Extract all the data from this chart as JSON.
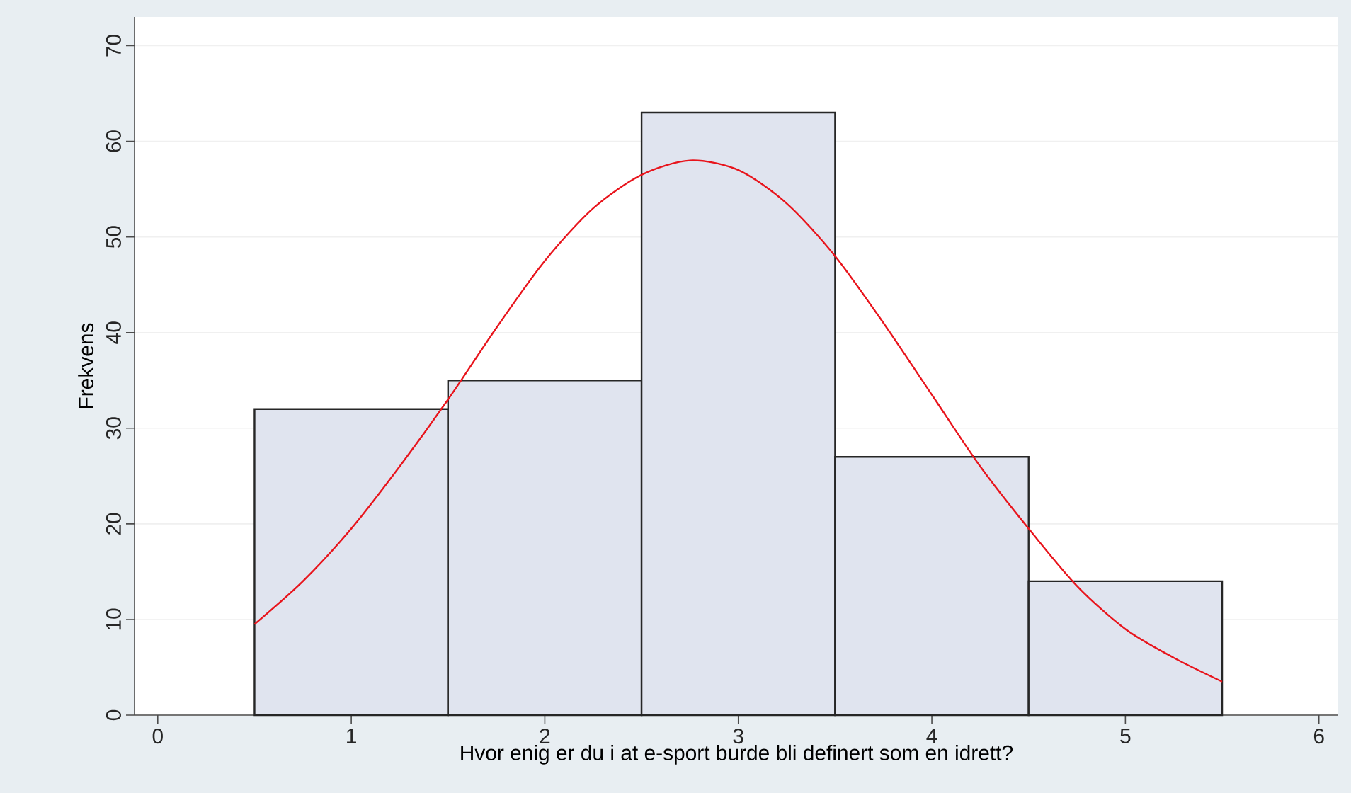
{
  "chart_data": {
    "type": "histogram",
    "xlabel": "Hvor enig er du i at e-sport burde bli definert som en idrett?",
    "ylabel": "Frekvens",
    "bins": [
      0.5,
      1.5,
      2.5,
      3.5,
      4.5,
      5.5
    ],
    "values": [
      32,
      35,
      63,
      27,
      14
    ],
    "color": "#e0e4ef",
    "series": [
      {
        "type": "line",
        "color": "#e8141c",
        "x": [
          0.5,
          0.75,
          1.0,
          1.25,
          1.5,
          1.75,
          2.0,
          2.25,
          2.5,
          2.75,
          3.0,
          3.25,
          3.5,
          3.75,
          4.0,
          4.25,
          4.5,
          4.75,
          5.0,
          5.25,
          5.5
        ],
        "values": [
          9.5,
          14,
          19.5,
          26,
          33,
          40.5,
          47.5,
          53,
          56.5,
          58,
          57,
          53.5,
          48,
          41,
          33.5,
          26,
          19.5,
          13.5,
          9,
          6,
          3.5
        ]
      }
    ],
    "xlim": [
      -0.12,
      6.1
    ],
    "ylim": [
      0,
      73
    ],
    "xticks": [
      0,
      1,
      2,
      3,
      4,
      5,
      6
    ],
    "yticks": [
      0,
      10,
      20,
      30,
      40,
      50,
      60,
      70
    ],
    "grid": "y"
  }
}
